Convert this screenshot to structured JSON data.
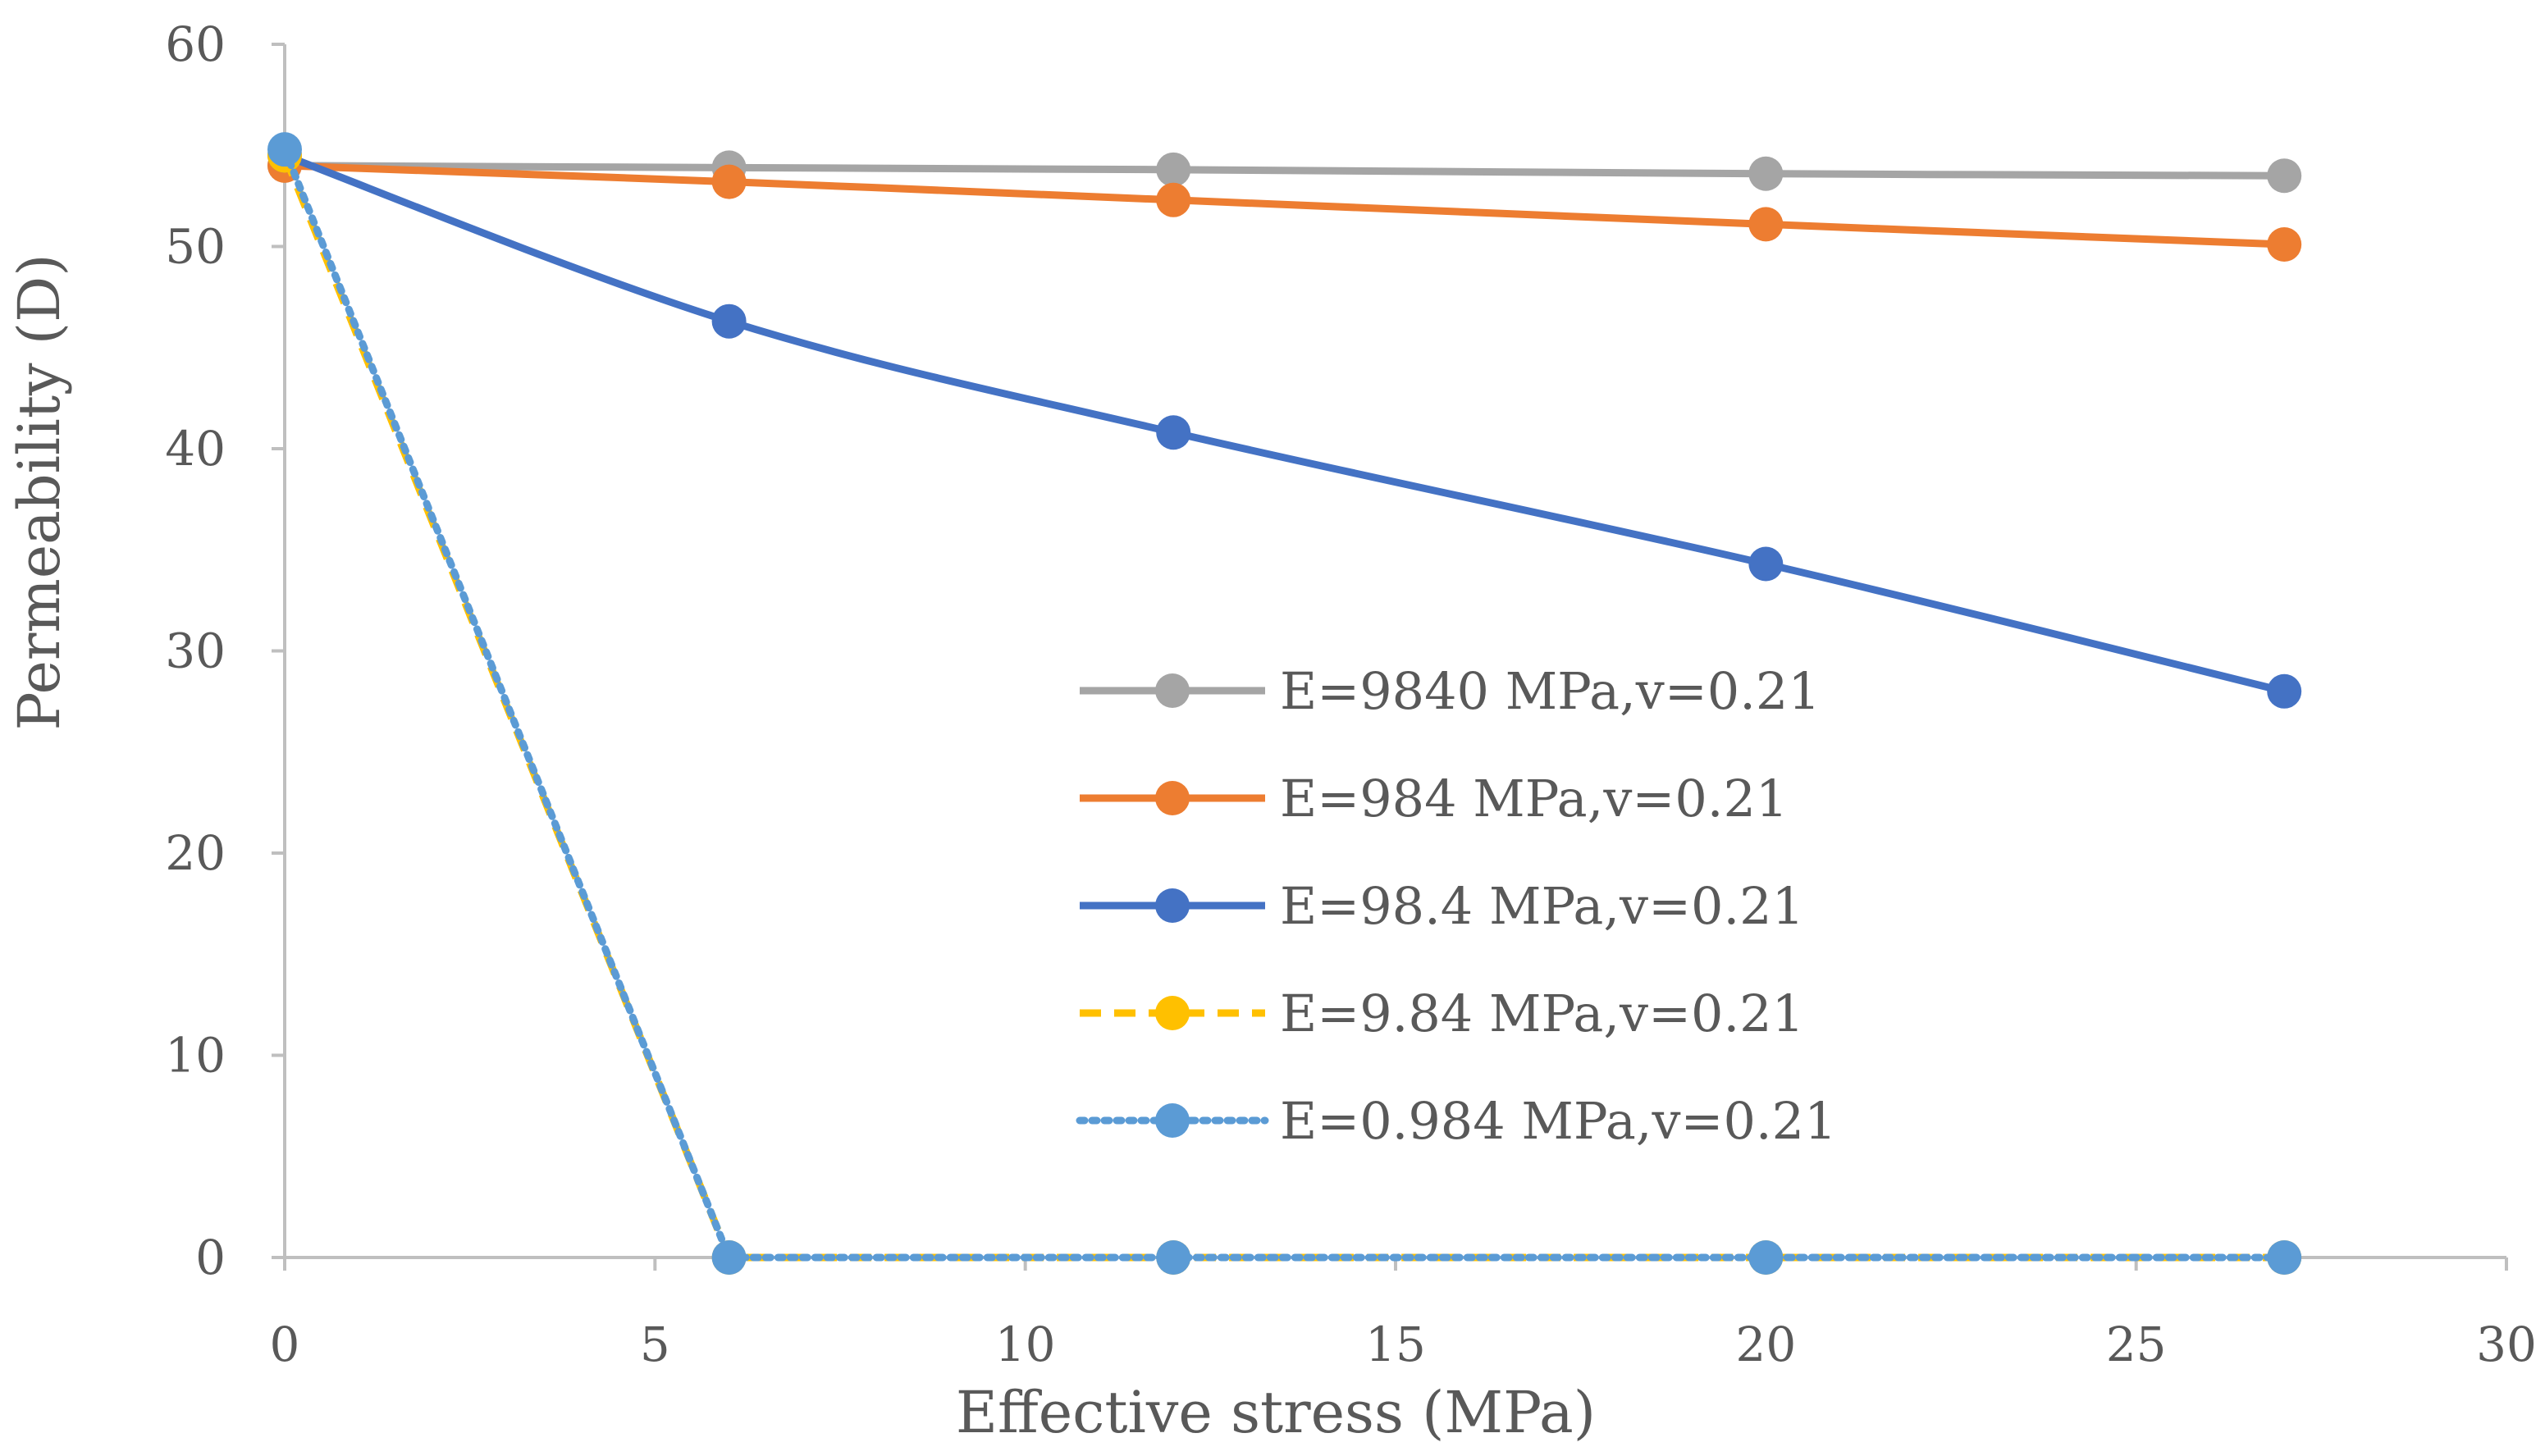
{
  "chart_data": {
    "type": "line",
    "title": "",
    "xlabel": "Effective stress (MPa)",
    "ylabel": "Permeability (D)",
    "xlim": [
      0,
      30
    ],
    "ylim": [
      0,
      60
    ],
    "xticks": [
      0,
      5,
      10,
      15,
      20,
      25,
      30
    ],
    "yticks": [
      0,
      10,
      20,
      30,
      40,
      50,
      60
    ],
    "grid": false,
    "legend_position": "center-right",
    "x": [
      0,
      6,
      12,
      20,
      27
    ],
    "series": [
      {
        "name": "E=9840 MPa,v=0.21",
        "values": [
          54.0,
          53.9,
          53.8,
          53.6,
          53.5
        ],
        "color": "#a5a5a5",
        "dash": "solid",
        "marker": "circle"
      },
      {
        "name": "E=984 MPa,v=0.21",
        "values": [
          54.0,
          53.2,
          52.3,
          51.1,
          50.1
        ],
        "color": "#ed7d31",
        "dash": "solid",
        "marker": "circle"
      },
      {
        "name": "E=98.4 MPa,v=0.21",
        "values": [
          54.5,
          46.3,
          40.8,
          34.3,
          28.0
        ],
        "color": "#4472c4",
        "dash": "solid",
        "marker": "circle"
      },
      {
        "name": "E=9.84 MPa,v=0.21",
        "values": [
          54.5,
          0,
          0,
          0,
          0
        ],
        "color": "#ffc000",
        "dash": "dashed",
        "marker": "circle"
      },
      {
        "name": "E=0.984 MPa,v=0.21",
        "values": [
          54.8,
          0,
          0,
          0,
          0
        ],
        "color": "#5b9bd5",
        "dash": "dotted",
        "marker": "circle"
      }
    ]
  }
}
